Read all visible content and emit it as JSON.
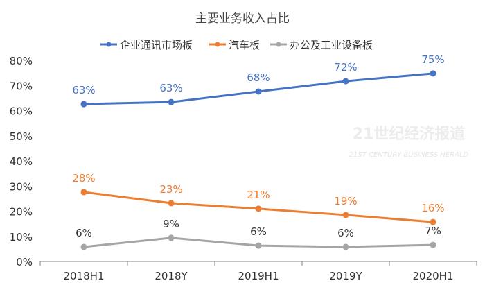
{
  "chart_data": {
    "type": "line",
    "title": "主要业务收入占比",
    "categories": [
      "2018H1",
      "2018Y",
      "2019H1",
      "2019Y",
      "2020H1"
    ],
    "ylim": [
      0,
      80
    ],
    "yticks": [
      "0%",
      "10%",
      "20%",
      "30%",
      "40%",
      "50%",
      "60%",
      "70%",
      "80%"
    ],
    "grid": false,
    "legend": "top",
    "series": [
      {
        "name": "企业通讯市场板",
        "color": "#4472c4",
        "values": [
          62.6,
          63.4,
          67.6,
          71.7,
          74.8
        ],
        "labels": [
          "63%",
          "63%",
          "68%",
          "72%",
          "75%"
        ]
      },
      {
        "name": "汽车板",
        "color": "#ed7d31",
        "values": [
          27.6,
          23.2,
          21.0,
          18.5,
          15.7
        ],
        "labels": [
          "28%",
          "23%",
          "21%",
          "19%",
          "16%"
        ]
      },
      {
        "name": "办公及工业设备板",
        "color": "#a5a5a5",
        "values": [
          5.8,
          9.4,
          6.3,
          5.8,
          6.6
        ],
        "labels": [
          "6%",
          "9%",
          "6%",
          "6%",
          "7%"
        ]
      }
    ]
  },
  "watermark": {
    "cn": "21世纪经济报道",
    "en": "21ST CENTURY BUSINESS HERALD"
  }
}
